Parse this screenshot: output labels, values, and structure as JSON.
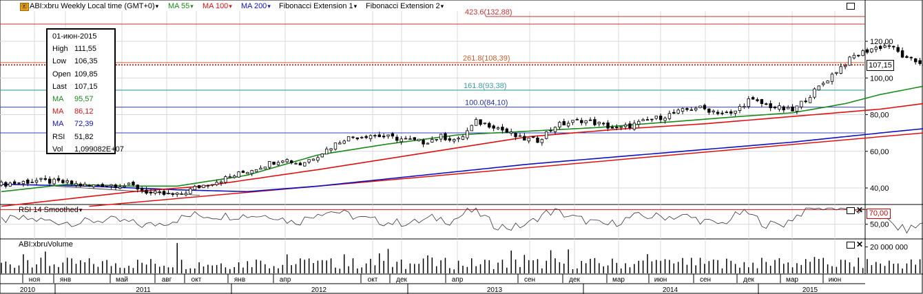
{
  "header": {
    "symbol": "ABI:xbru Weekly Local time (GMT+0)",
    "ma55": "MA 55",
    "ma100": "MA 100",
    "ma200": "MA 200",
    "fib1": "Fibonacci Extension 1",
    "fib2": "Fibonacci Extension 2"
  },
  "infobox": {
    "date": "01-июн-2015",
    "rows": [
      {
        "k": "High",
        "v": "111,55",
        "color": "#000000"
      },
      {
        "k": "Low",
        "v": "106,35",
        "color": "#000000"
      },
      {
        "k": "Open",
        "v": "109,85",
        "color": "#000000"
      },
      {
        "k": "Last",
        "v": "107,15",
        "color": "#000000"
      },
      {
        "k": "MA",
        "v": "95,57",
        "color": "#1a8a1a"
      },
      {
        "k": "MA",
        "v": "86,12",
        "color": "#e01010"
      },
      {
        "k": "MA",
        "v": "72,39",
        "color": "#1010c0"
      },
      {
        "k": "RSI",
        "v": "51,82",
        "color": "#000000"
      },
      {
        "k": "Vol",
        "v": "1,099082E+07",
        "color": "#000000"
      }
    ]
  },
  "colors": {
    "ma55": "#1a8a1a",
    "ma100": "#e01010",
    "ma200": "#1010c0",
    "fib": "#cc3030",
    "fibBlue": "#3040c0",
    "grid": "#d8d8d8"
  },
  "last_price_label": "107,15",
  "rsi": {
    "title": "RSI 14 Smoothed",
    "level_label": "70,00",
    "axis": [
      "50,00"
    ]
  },
  "volume": {
    "title": "ABI:xbruVolume",
    "axis": [
      "20 000 000"
    ]
  },
  "chart_data": {
    "type": "candlestick",
    "title": "ABI:xbru Weekly",
    "y_axis_labels": [
      "120,00",
      "100,00",
      "80,00",
      "60,00",
      "40,00"
    ],
    "ylim": [
      30,
      133
    ],
    "last": 107.15,
    "fib_levels": [
      {
        "label": "423.6(132,88)",
        "value": 132.88
      },
      {
        "label": "261.8(108,39)",
        "value": 108.39
      },
      {
        "label": "161.8(93,38)",
        "value": 93.38
      },
      {
        "label": "100.0(84,10)",
        "value": 84.1
      }
    ],
    "x_month_labels": [
      "ноя",
      "янв",
      "май",
      "авг",
      "окт",
      "янв",
      "апр",
      "окт",
      "дек",
      "апр",
      "сен",
      "дек",
      "мар",
      "июн",
      "сен",
      "дек",
      "мар",
      "июн"
    ],
    "x_year_labels": [
      "2010",
      "2011",
      "2012",
      "2013",
      "2014",
      "2015"
    ],
    "price_path": [
      [
        0,
        42
      ],
      [
        8,
        44
      ],
      [
        14,
        43
      ],
      [
        20,
        41
      ],
      [
        24,
        42
      ],
      [
        30,
        41
      ],
      [
        34,
        37
      ],
      [
        40,
        36
      ],
      [
        44,
        40
      ],
      [
        52,
        46
      ],
      [
        58,
        51
      ],
      [
        64,
        56
      ],
      [
        68,
        53
      ],
      [
        72,
        58
      ],
      [
        78,
        67
      ],
      [
        84,
        69
      ],
      [
        90,
        67
      ],
      [
        96,
        65
      ],
      [
        100,
        68
      ],
      [
        104,
        66
      ],
      [
        108,
        76
      ],
      [
        112,
        74
      ],
      [
        118,
        67
      ],
      [
        122,
        66
      ],
      [
        126,
        74
      ],
      [
        132,
        77
      ],
      [
        136,
        75
      ],
      [
        140,
        72
      ],
      [
        146,
        76
      ],
      [
        152,
        80
      ],
      [
        158,
        84
      ],
      [
        162,
        82
      ],
      [
        166,
        80
      ],
      [
        170,
        88
      ],
      [
        176,
        84
      ],
      [
        180,
        82
      ],
      [
        186,
        95
      ],
      [
        190,
        104
      ],
      [
        194,
        112
      ],
      [
        198,
        116
      ],
      [
        202,
        118
      ],
      [
        206,
        110
      ],
      [
        210,
        108
      ]
    ],
    "ma55_path": [
      [
        0,
        38
      ],
      [
        15,
        42
      ],
      [
        30,
        41
      ],
      [
        40,
        41
      ],
      [
        56,
        47
      ],
      [
        72,
        58
      ],
      [
        88,
        64
      ],
      [
        104,
        69
      ],
      [
        120,
        71
      ],
      [
        136,
        73
      ],
      [
        152,
        76
      ],
      [
        168,
        79
      ],
      [
        180,
        81
      ],
      [
        192,
        86
      ],
      [
        200,
        91
      ],
      [
        210,
        95.6
      ]
    ],
    "ma100_path": [
      [
        0,
        30
      ],
      [
        30,
        38
      ],
      [
        46,
        41
      ],
      [
        72,
        50
      ],
      [
        96,
        59
      ],
      [
        120,
        68
      ],
      [
        140,
        72
      ],
      [
        160,
        75
      ],
      [
        180,
        79
      ],
      [
        200,
        83
      ],
      [
        210,
        86.1
      ]
    ],
    "ma200_path": [
      [
        0,
        42
      ],
      [
        20,
        41
      ],
      [
        40,
        39
      ],
      [
        56,
        38
      ],
      [
        72,
        41
      ],
      [
        96,
        47
      ],
      [
        120,
        53
      ],
      [
        150,
        59
      ],
      [
        180,
        65
      ],
      [
        200,
        70
      ],
      [
        210,
        72.4
      ]
    ],
    "trendline": [
      [
        20,
        30
      ],
      [
        219,
        70
      ]
    ],
    "rsi_ylim": [
      30,
      75
    ],
    "rsi_levels": [
      70,
      50
    ],
    "rsi_x_labels_shown": false,
    "volume_ylim": [
      0,
      24000000
    ],
    "volume_level": 20000000,
    "bar_count": 219
  }
}
